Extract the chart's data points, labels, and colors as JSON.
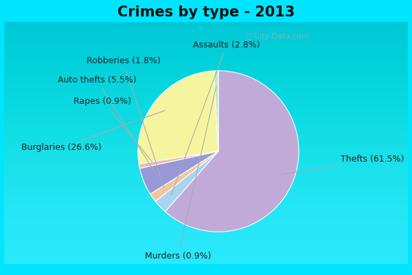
{
  "title": "Crimes by type - 2013",
  "slices": [
    {
      "label": "Thefts (61.5%)",
      "value": 61.5,
      "color": "#c0aad8"
    },
    {
      "label": "Burglaries (26.6%)",
      "value": 26.6,
      "color": "#f5f5a0"
    },
    {
      "label": "Murders (0.9%)",
      "value": 0.9,
      "color": "#c8e8c0"
    },
    {
      "label": "Rapes (0.9%)",
      "value": 0.9,
      "color": "#f0b8b0"
    },
    {
      "label": "Auto thefts (5.5%)",
      "value": 5.5,
      "color": "#9898d8"
    },
    {
      "label": "Robberies (1.8%)",
      "value": 1.8,
      "color": "#f0c8a0"
    },
    {
      "label": "Assaults (2.8%)",
      "value": 2.8,
      "color": "#a8d4f0"
    }
  ],
  "background_outer": "#00e5ff",
  "background_inner_top": "#e8f5f0",
  "background_inner_bot": "#d0eee0",
  "title_fontsize": 15,
  "title_color": "#111111",
  "label_fontsize": 9,
  "watermark": "ⓘ City-Data.com"
}
